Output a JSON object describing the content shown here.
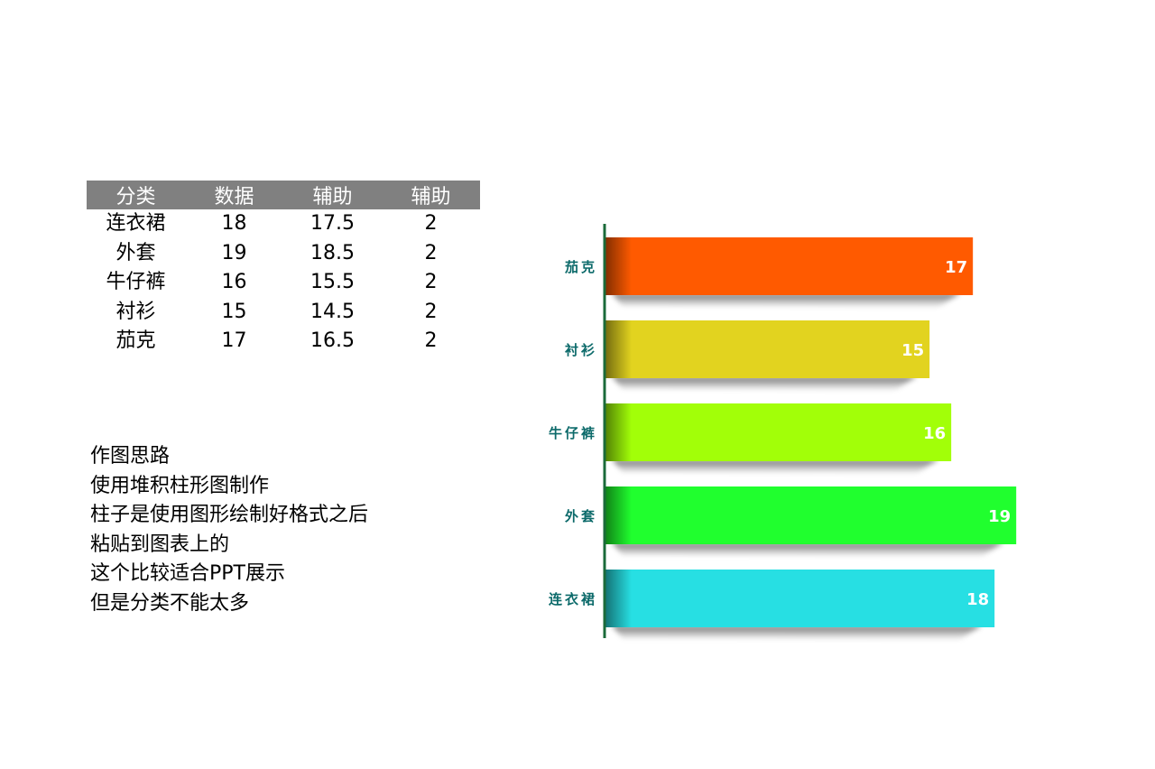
{
  "table": {
    "headers": [
      "分类",
      "数据",
      "辅助",
      "辅助"
    ],
    "rows": [
      [
        "连衣裙",
        "18",
        "17.5",
        "2"
      ],
      [
        "外套",
        "19",
        "18.5",
        "2"
      ],
      [
        "牛仔裤",
        "16",
        "15.5",
        "2"
      ],
      [
        "衬衫",
        "15",
        "14.5",
        "2"
      ],
      [
        "茄克",
        "17",
        "16.5",
        "2"
      ]
    ]
  },
  "notes": [
    "作图思路",
    "使用堆积柱形图制作",
    "柱子是使用图形绘制好格式之后",
    "粘贴到图表上的",
    "这个比较适合PPT展示",
    "但是分类不能太多"
  ],
  "chart_data": {
    "type": "bar",
    "orientation": "horizontal",
    "categories": [
      "茄克",
      "衬衫",
      "牛仔裤",
      "外套",
      "连衣裙"
    ],
    "values": [
      17,
      15,
      16,
      19,
      18
    ],
    "data_labels": [
      "17",
      "15",
      "16",
      "19",
      "18"
    ],
    "colors": [
      "#ff5a00",
      "#e2d31f",
      "#a2ff08",
      "#20ff2e",
      "#27dfe3"
    ],
    "axis_color": "#1b6b3a",
    "label_color": "#0c6a6a",
    "xlim": [
      0,
      19.7
    ],
    "grid": false,
    "legend": "none"
  }
}
